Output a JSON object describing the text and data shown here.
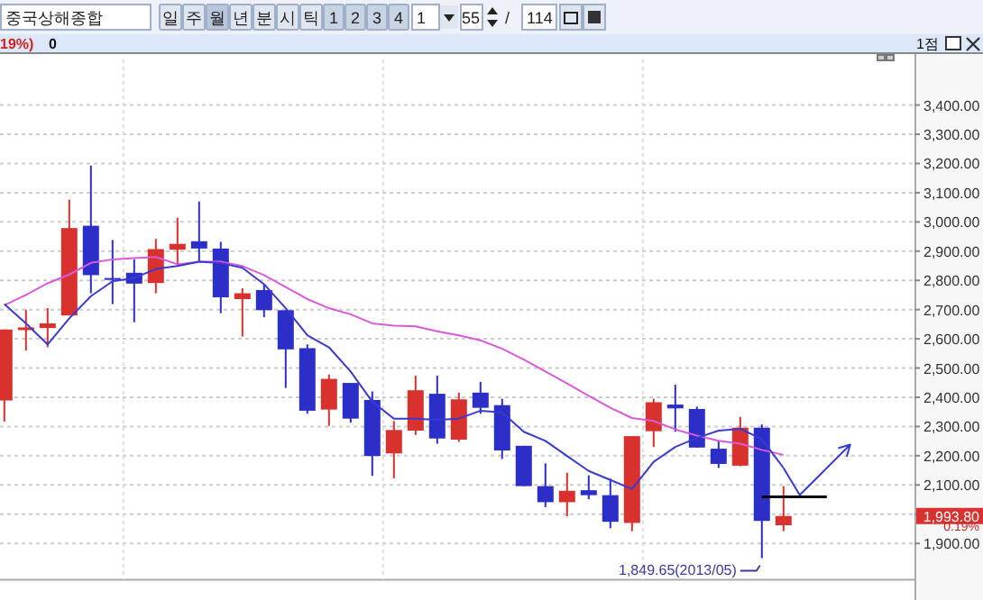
{
  "chart_data": {
    "type": "candlestick",
    "title": "중국상해종합",
    "categories": [
      null,
      null,
      null,
      null,
      null,
      null,
      null,
      null,
      null,
      null,
      null,
      null,
      null,
      null,
      null,
      null,
      null,
      null,
      null,
      null,
      null,
      null,
      null,
      null,
      null,
      null,
      null,
      null,
      null,
      null,
      null,
      null,
      null,
      null,
      null,
      null,
      null,
      null,
      null,
      null
    ],
    "ohlc": [
      [
        2389,
        2632,
        2317,
        2632
      ],
      [
        2630,
        2700,
        2560,
        2639
      ],
      [
        2637,
        2705,
        2571,
        2653
      ],
      [
        2680,
        3076,
        2680,
        2979
      ],
      [
        2987,
        3193,
        2756,
        2818
      ],
      [
        2808,
        2938,
        2719,
        2804
      ],
      [
        2826,
        2872,
        2657,
        2789
      ],
      [
        2791,
        2942,
        2756,
        2907
      ],
      [
        2905,
        3014,
        2849,
        2925
      ],
      [
        2934,
        3070,
        2863,
        2909
      ],
      [
        2909,
        2932,
        2688,
        2742
      ],
      [
        2736,
        2773,
        2608,
        2756
      ],
      [
        2767,
        2787,
        2674,
        2698
      ],
      [
        2698,
        2698,
        2432,
        2564
      ],
      [
        2568,
        2581,
        2344,
        2354
      ],
      [
        2358,
        2478,
        2302,
        2463
      ],
      [
        2449,
        2449,
        2313,
        2327
      ],
      [
        2391,
        2420,
        2131,
        2199
      ],
      [
        2208,
        2319,
        2123,
        2288
      ],
      [
        2286,
        2474,
        2271,
        2424
      ],
      [
        2412,
        2474,
        2241,
        2259
      ],
      [
        2255,
        2416,
        2247,
        2393
      ],
      [
        2416,
        2453,
        2344,
        2364
      ],
      [
        2373,
        2395,
        2189,
        2218
      ],
      [
        2234,
        2234,
        2096,
        2096
      ],
      [
        2096,
        2174,
        2024,
        2041
      ],
      [
        2041,
        2142,
        1993,
        2080
      ],
      [
        2082,
        2133,
        2051,
        2065
      ],
      [
        2065,
        2121,
        1952,
        1974
      ],
      [
        1970,
        2267,
        1942,
        2267
      ],
      [
        2284,
        2395,
        2230,
        2383
      ],
      [
        2375,
        2443,
        2282,
        2362
      ],
      [
        2360,
        2368,
        2228,
        2228
      ],
      [
        2224,
        2251,
        2158,
        2172
      ],
      [
        2166,
        2333,
        2164,
        2296
      ],
      [
        2296,
        2307,
        1849.65,
        1977
      ],
      [
        1962,
        2096,
        1942,
        1993.8
      ],
      null,
      null,
      null
    ],
    "colors": [
      "#d8312e",
      "#d8312e",
      "#d8312e",
      "#d8312e",
      "#2b2fc8",
      "#2b2fc8",
      "#2b2fc8",
      "#d8312e",
      "#d8312e",
      "#2b2fc8",
      "#2b2fc8",
      "#d8312e",
      "#2b2fc8",
      "#2b2fc8",
      "#2b2fc8",
      "#d8312e",
      "#2b2fc8",
      "#2b2fc8",
      "#d8312e",
      "#d8312e",
      "#2b2fc8",
      "#d8312e",
      "#2b2fc8",
      "#2b2fc8",
      "#2b2fc8",
      "#2b2fc8",
      "#d8312e",
      "#2b2fc8",
      "#2b2fc8",
      "#d8312e",
      "#d8312e",
      "#2b2fc8",
      "#2b2fc8",
      "#2b2fc8",
      "#d8312e",
      "#2b2fc8",
      "#d8312e",
      null,
      null,
      null
    ],
    "series": [
      {
        "type": "line",
        "color": "#d85ad8",
        "values": [
          2715,
          2750,
          2790,
          2820,
          2860,
          2872,
          2876,
          2880,
          2855,
          2864,
          2864,
          2849,
          2818,
          2777,
          2736,
          2705,
          2684,
          2653,
          2645,
          2643,
          2626,
          2612,
          2595,
          2566,
          2529,
          2488,
          2447,
          2405,
          2364,
          2329,
          2319,
          2290,
          2269,
          2251,
          2241,
          2220,
          2203,
          null,
          null,
          null
        ]
      },
      {
        "type": "line",
        "color": "#3a3ad0",
        "values": [
          2719,
          2653,
          2581,
          2670,
          2746,
          2797,
          2808,
          2839,
          2849,
          2864,
          2859,
          2843,
          2787,
          2705,
          2612,
          2571,
          2488,
          2385,
          2327,
          2327,
          2323,
          2327,
          2354,
          2348,
          2282,
          2251,
          2199,
          2148,
          2117,
          2086,
          2179,
          2230,
          2261,
          2286,
          2292,
          2257,
          2158,
          null,
          null,
          null
        ]
      },
      {
        "type": "line",
        "color": "#000000",
        "values": [
          null,
          null,
          null,
          null,
          null,
          null,
          null,
          null,
          null,
          null,
          null,
          null,
          null,
          null,
          null,
          null,
          null,
          null,
          null,
          null,
          null,
          null,
          null,
          null,
          null,
          null,
          null,
          null,
          null,
          null,
          null,
          null,
          null,
          null,
          null,
          2059,
          2059,
          2059,
          2059,
          null
        ]
      }
    ],
    "ylim": [
      1776,
      3556
    ],
    "yticks": [
      {
        "value": 1900,
        "label": "1,900.00"
      },
      {
        "value": 2000,
        "label": null
      },
      {
        "value": 2100,
        "label": "2,100.00"
      },
      {
        "value": 2200,
        "label": "2,200.00"
      },
      {
        "value": 2300,
        "label": "2,300.00"
      },
      {
        "value": 2400,
        "label": "2,400.00"
      },
      {
        "value": 2500,
        "label": "2,500.00"
      },
      {
        "value": 2600,
        "label": "2,600.00"
      },
      {
        "value": 2700,
        "label": "2,700.00"
      },
      {
        "value": 2800,
        "label": "2,800.00"
      },
      {
        "value": 2900,
        "label": "2,900.00"
      },
      {
        "value": 3000,
        "label": "3,000.00"
      },
      {
        "value": 3100,
        "label": "3,100.00"
      },
      {
        "value": 3200,
        "label": "3,200.00"
      },
      {
        "value": 3300,
        "label": "3,300.00"
      },
      {
        "value": 3400,
        "label": "3,400.00"
      }
    ],
    "grid": true,
    "tick_labels": "y",
    "line_style": "solid",
    "annotations": [
      "일",
      "주",
      "월",
      "년",
      "분",
      "시",
      "틱",
      "1",
      "2",
      "3",
      "4",
      "1",
      "55",
      "/",
      "114",
      "19%)",
      "0",
      "1점",
      "0.19%",
      "1,993.80",
      "1,849.65(2013/05)"
    ]
  }
}
